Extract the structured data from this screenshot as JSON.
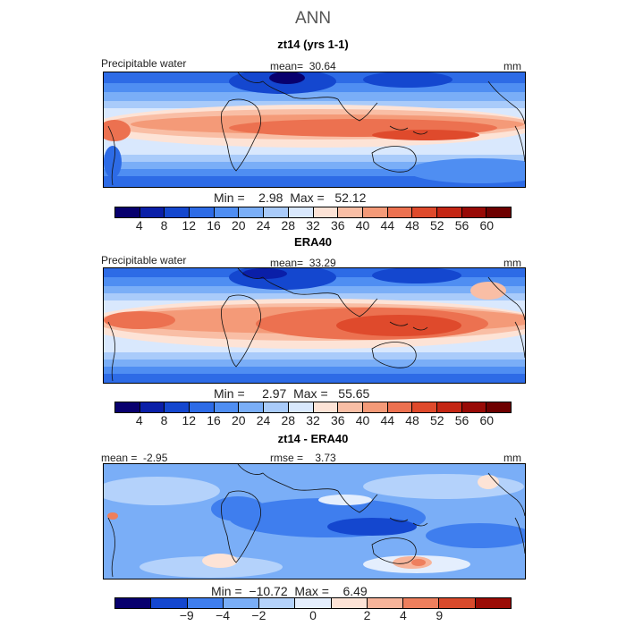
{
  "page_title": "ANN",
  "units": "mm",
  "panels": [
    {
      "title": "zt14 (yrs 1-1)",
      "left_label": "Precipitable water",
      "center_label": "mean=  30.64",
      "min_max": "Min =    2.98  Max =   52.12",
      "colorbar_ticks": [
        "4",
        "8",
        "12",
        "16",
        "20",
        "24",
        "28",
        "32",
        "36",
        "40",
        "44",
        "48",
        "52",
        "56",
        "60"
      ]
    },
    {
      "title": "ERA40",
      "left_label": "Precipitable water",
      "center_label": "mean=  33.29",
      "min_max": "Min =     2.97  Max =   55.65",
      "colorbar_ticks": [
        "4",
        "8",
        "12",
        "16",
        "20",
        "24",
        "28",
        "32",
        "36",
        "40",
        "44",
        "48",
        "52",
        "56",
        "60"
      ]
    },
    {
      "title": "zt14 - ERA40",
      "left_label": "mean =  -2.95",
      "center_label": "rmse =    3.73",
      "min_max": "Min =  −10.72  Max =    6.49",
      "colorbar_ticks": [
        "−9",
        "−4",
        "−2",
        "0",
        "2",
        "4",
        "9"
      ]
    }
  ],
  "colors": {
    "full_scale": [
      "#08006e",
      "#0a1fa8",
      "#1447cf",
      "#2d6be6",
      "#4f8ef2",
      "#7aaef7",
      "#a9cbfa",
      "#d9e8fd",
      "#fde3d6",
      "#f9bea5",
      "#f49a78",
      "#ec7150",
      "#df4a2c",
      "#c42614",
      "#980a06",
      "#6e0000"
    ],
    "diff_scale": [
      "#08006e",
      "#1447cf",
      "#3f7eee",
      "#7aaef7",
      "#b4d2fb",
      "#e4eefd",
      "#fde3d6",
      "#f7b49a",
      "#ee7f5d",
      "#d94a2c",
      "#9b0c06"
    ]
  }
}
